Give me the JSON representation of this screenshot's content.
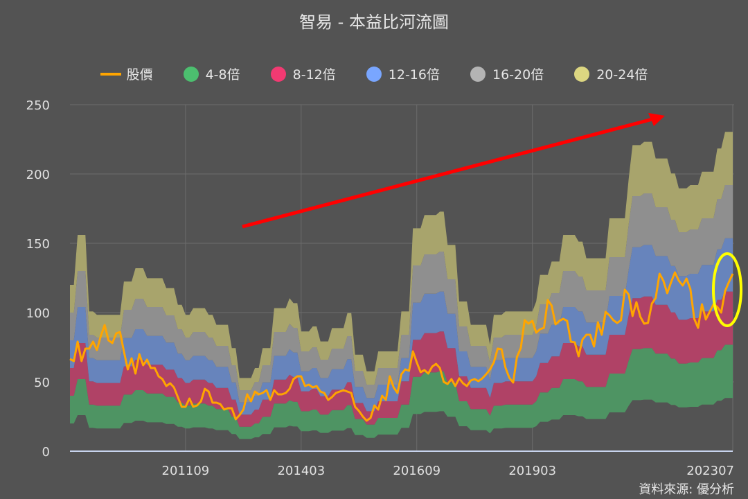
{
  "chart_data": {
    "type": "area",
    "title": "智易 - 本益比河流圖",
    "source": "資料來源: 優分析",
    "xlabel": "",
    "ylabel": "",
    "ylim": [
      0,
      250
    ],
    "yticks": [
      0,
      50,
      100,
      150,
      200,
      250
    ],
    "xticks": [
      "201109",
      "201403",
      "201609",
      "201903",
      "202307"
    ],
    "grid": true,
    "legend_position": "top",
    "legend": [
      {
        "name": "股價",
        "kind": "line",
        "color": "#ffa500"
      },
      {
        "name": "4-8倍",
        "kind": "dot",
        "color": "#4cbf6f"
      },
      {
        "name": "8-12倍",
        "kind": "dot",
        "color": "#f23a72"
      },
      {
        "name": "12-16倍",
        "kind": "dot",
        "color": "#79a6ff"
      },
      {
        "name": "16-20倍",
        "kind": "dot",
        "color": "#b4b4b4"
      },
      {
        "name": "20-24倍",
        "kind": "dot",
        "color": "#dcd681"
      }
    ],
    "bands": [
      {
        "name": "4-8倍",
        "lower_multiple": 4,
        "upper_multiple": 8,
        "color": "#4e9463"
      },
      {
        "name": "8-12倍",
        "lower_multiple": 8,
        "upper_multiple": 12,
        "color": "#b04266"
      },
      {
        "name": "12-16倍",
        "lower_multiple": 12,
        "upper_multiple": 16,
        "color": "#6784bc"
      },
      {
        "name": "16-20倍",
        "lower_multiple": 16,
        "upper_multiple": 20,
        "color": "#8f8f8f"
      },
      {
        "name": "20-24倍",
        "lower_multiple": 20,
        "upper_multiple": 24,
        "color": "#a8a46c"
      }
    ],
    "dates": [
      "200903",
      "200904",
      "200905",
      "200906",
      "200907",
      "200908",
      "200909",
      "200910",
      "200911",
      "200912",
      "201001",
      "201002",
      "201003",
      "201004",
      "201005",
      "201006",
      "201007",
      "201008",
      "201009",
      "201010",
      "201011",
      "201012",
      "201101",
      "201102",
      "201103",
      "201104",
      "201105",
      "201106",
      "201107",
      "201108",
      "201109",
      "201110",
      "201111",
      "201112",
      "201201",
      "201202",
      "201203",
      "201204",
      "201205",
      "201206",
      "201207",
      "201208",
      "201209",
      "201210",
      "201211",
      "201212",
      "201301",
      "201302",
      "201303",
      "201304",
      "201305",
      "201306",
      "201307",
      "201308",
      "201309",
      "201310",
      "201311",
      "201312",
      "201401",
      "201402",
      "201403",
      "201404",
      "201405",
      "201406",
      "201407",
      "201408",
      "201409",
      "201410",
      "201411",
      "201412",
      "201501",
      "201502",
      "201503",
      "201504",
      "201505",
      "201506",
      "201507",
      "201508",
      "201509",
      "201510",
      "201511",
      "201512",
      "201601",
      "201602",
      "201603",
      "201604",
      "201605",
      "201606",
      "201607",
      "201608",
      "201609",
      "201610",
      "201611",
      "201612",
      "201701",
      "201702",
      "201703",
      "201704",
      "201705",
      "201706",
      "201707",
      "201708",
      "201709",
      "201710",
      "201711",
      "201712",
      "201801",
      "201802",
      "201803",
      "201804",
      "201805",
      "201806",
      "201807",
      "201808",
      "201809",
      "201810",
      "201811",
      "201812",
      "201901",
      "201902",
      "201903",
      "201904",
      "201905",
      "201906",
      "201907",
      "201908",
      "201909",
      "201910",
      "201911",
      "201912",
      "202001",
      "202002",
      "202003",
      "202004",
      "202005",
      "202006",
      "202007",
      "202008",
      "202009",
      "202010",
      "202011",
      "202012",
      "202101",
      "202102",
      "202103",
      "202104",
      "202105",
      "202106",
      "202107",
      "202108",
      "202109",
      "202110",
      "202111",
      "202112",
      "202201",
      "202202",
      "202203",
      "202204",
      "202205",
      "202206",
      "202207",
      "202208",
      "202209",
      "202210",
      "202211",
      "202212",
      "202301",
      "202302",
      "202303",
      "202304",
      "202305",
      "202306",
      "202307"
    ],
    "eps": [
      5.0,
      5.0,
      6.5,
      6.5,
      6.5,
      4.2,
      4.2,
      4.1,
      4.1,
      4.1,
      4.1,
      4.1,
      4.1,
      4.1,
      5.1,
      5.1,
      5.1,
      5.5,
      5.5,
      5.5,
      5.2,
      5.2,
      5.2,
      5.2,
      5.2,
      4.9,
      4.9,
      4.9,
      4.4,
      4.4,
      4.1,
      4.1,
      4.3,
      4.3,
      4.3,
      4.3,
      4.1,
      4.1,
      3.8,
      3.8,
      3.8,
      3.8,
      3.1,
      3.1,
      2.2,
      2.2,
      2.2,
      2.2,
      2.5,
      2.5,
      3.1,
      3.1,
      3.1,
      4.3,
      4.3,
      4.3,
      4.3,
      4.6,
      4.45,
      4.45,
      3.6,
      3.6,
      3.6,
      3.75,
      3.75,
      3.3,
      3.3,
      3.3,
      3.7,
      3.7,
      3.7,
      3.7,
      4.15,
      4.15,
      2.9,
      2.9,
      2.9,
      2.4,
      2.4,
      2.4,
      3.0,
      3.0,
      3.0,
      3.0,
      3.0,
      3.0,
      4.2,
      4.2,
      4.2,
      6.7,
      6.7,
      6.7,
      7.1,
      7.1,
      7.1,
      7.1,
      7.2,
      7.2,
      6.2,
      6.2,
      6.2,
      4.5,
      4.5,
      4.5,
      3.8,
      3.8,
      3.8,
      3.8,
      3.8,
      3.2,
      4.1,
      4.1,
      4.1,
      4.2,
      4.2,
      4.2,
      4.2,
      4.2,
      4.2,
      4.2,
      4.2,
      4.5,
      5.3,
      5.3,
      5.3,
      5.7,
      5.7,
      5.7,
      6.5,
      6.5,
      6.5,
      6.5,
      6.3,
      6.3,
      5.8,
      5.8,
      5.8,
      5.8,
      5.8,
      5.8,
      7.0,
      7.0,
      7.0,
      7.0,
      7.0,
      8.2,
      9.2,
      9.2,
      9.2,
      9.3,
      9.3,
      9.3,
      8.8,
      8.8,
      8.8,
      8.8,
      8.35,
      8.35,
      7.9,
      7.9,
      7.9,
      8.0,
      8.0,
      8.0,
      8.4,
      8.4,
      8.4,
      8.4,
      9.1,
      9.1,
      9.6,
      9.6,
      9.6
    ],
    "price": {
      "name": "股價",
      "values": [
        66.5,
        65,
        79,
        65,
        74,
        74,
        79,
        73,
        83,
        91,
        80,
        78,
        85,
        86,
        72,
        59,
        67,
        56,
        70,
        62,
        66,
        60,
        60,
        54,
        52,
        47,
        49,
        46,
        39,
        32,
        32,
        38,
        32,
        33,
        36,
        45,
        43,
        35,
        35,
        34,
        30,
        31,
        31,
        23,
        26,
        30,
        41,
        36,
        43,
        41,
        42,
        44,
        37,
        44,
        41,
        41,
        42,
        45,
        52,
        54,
        54,
        47,
        48,
        46,
        47,
        43,
        42,
        37,
        39,
        42,
        43,
        44,
        43,
        42,
        32,
        29,
        25,
        22,
        24,
        33,
        30,
        40,
        37,
        54,
        46,
        42,
        55.5,
        59,
        58,
        72,
        64,
        57,
        58.5,
        56,
        61,
        63,
        60,
        50,
        48.5,
        52,
        47,
        52.5,
        49,
        47,
        51,
        52,
        50.5,
        52.5,
        55.5,
        59,
        64,
        74,
        73.5,
        60.5,
        53,
        49.5,
        68,
        74.5,
        94.5,
        92,
        94,
        85.5,
        88,
        89,
        109,
        105,
        91.5,
        94,
        95.5,
        94,
        79,
        78.5,
        68.5,
        80.5,
        84,
        84,
        75.5,
        93,
        84,
        100.5,
        98,
        94.5,
        92.5,
        94.5,
        116.5,
        113,
        97.5,
        107.5,
        97,
        92,
        92.5,
        106.5,
        110.5,
        128,
        123,
        114,
        122,
        129,
        123,
        119.5,
        124.5,
        117,
        95.5,
        89,
        106,
        95,
        100.5,
        106,
        104,
        100,
        115.5,
        122,
        128
      ]
    },
    "annotations": [
      {
        "kind": "arrow",
        "color": "#ff0000"
      },
      {
        "kind": "ellipse",
        "color": "#ffff00"
      }
    ]
  }
}
